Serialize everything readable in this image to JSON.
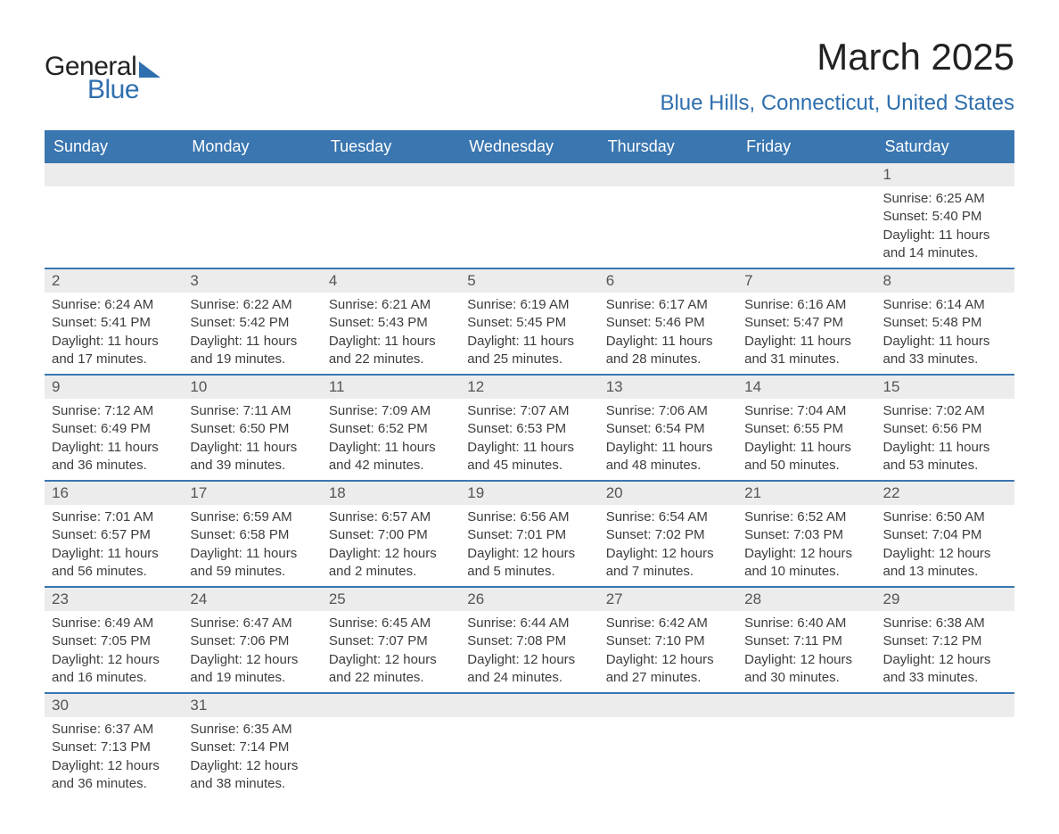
{
  "brand": {
    "word1": "General",
    "word2": "Blue",
    "accent_color": "#2f6fae",
    "text_color": "#222222"
  },
  "title": "March 2025",
  "location": "Blue Hills, Connecticut, United States",
  "colors": {
    "header_bg": "#3a76b0",
    "header_text": "#ffffff",
    "strip_bg": "#ececec",
    "strip_text": "#555555",
    "body_text": "#3d3d3d",
    "rule": "#3a76b0",
    "page_bg": "#ffffff"
  },
  "day_names": [
    "Sunday",
    "Monday",
    "Tuesday",
    "Wednesday",
    "Thursday",
    "Friday",
    "Saturday"
  ],
  "weeks": [
    [
      {
        "day": "",
        "sunrise": "",
        "sunset": "",
        "daylight": ""
      },
      {
        "day": "",
        "sunrise": "",
        "sunset": "",
        "daylight": ""
      },
      {
        "day": "",
        "sunrise": "",
        "sunset": "",
        "daylight": ""
      },
      {
        "day": "",
        "sunrise": "",
        "sunset": "",
        "daylight": ""
      },
      {
        "day": "",
        "sunrise": "",
        "sunset": "",
        "daylight": ""
      },
      {
        "day": "",
        "sunrise": "",
        "sunset": "",
        "daylight": ""
      },
      {
        "day": "1",
        "sunrise": "Sunrise: 6:25 AM",
        "sunset": "Sunset: 5:40 PM",
        "daylight": "Daylight: 11 hours and 14 minutes."
      }
    ],
    [
      {
        "day": "2",
        "sunrise": "Sunrise: 6:24 AM",
        "sunset": "Sunset: 5:41 PM",
        "daylight": "Daylight: 11 hours and 17 minutes."
      },
      {
        "day": "3",
        "sunrise": "Sunrise: 6:22 AM",
        "sunset": "Sunset: 5:42 PM",
        "daylight": "Daylight: 11 hours and 19 minutes."
      },
      {
        "day": "4",
        "sunrise": "Sunrise: 6:21 AM",
        "sunset": "Sunset: 5:43 PM",
        "daylight": "Daylight: 11 hours and 22 minutes."
      },
      {
        "day": "5",
        "sunrise": "Sunrise: 6:19 AM",
        "sunset": "Sunset: 5:45 PM",
        "daylight": "Daylight: 11 hours and 25 minutes."
      },
      {
        "day": "6",
        "sunrise": "Sunrise: 6:17 AM",
        "sunset": "Sunset: 5:46 PM",
        "daylight": "Daylight: 11 hours and 28 minutes."
      },
      {
        "day": "7",
        "sunrise": "Sunrise: 6:16 AM",
        "sunset": "Sunset: 5:47 PM",
        "daylight": "Daylight: 11 hours and 31 minutes."
      },
      {
        "day": "8",
        "sunrise": "Sunrise: 6:14 AM",
        "sunset": "Sunset: 5:48 PM",
        "daylight": "Daylight: 11 hours and 33 minutes."
      }
    ],
    [
      {
        "day": "9",
        "sunrise": "Sunrise: 7:12 AM",
        "sunset": "Sunset: 6:49 PM",
        "daylight": "Daylight: 11 hours and 36 minutes."
      },
      {
        "day": "10",
        "sunrise": "Sunrise: 7:11 AM",
        "sunset": "Sunset: 6:50 PM",
        "daylight": "Daylight: 11 hours and 39 minutes."
      },
      {
        "day": "11",
        "sunrise": "Sunrise: 7:09 AM",
        "sunset": "Sunset: 6:52 PM",
        "daylight": "Daylight: 11 hours and 42 minutes."
      },
      {
        "day": "12",
        "sunrise": "Sunrise: 7:07 AM",
        "sunset": "Sunset: 6:53 PM",
        "daylight": "Daylight: 11 hours and 45 minutes."
      },
      {
        "day": "13",
        "sunrise": "Sunrise: 7:06 AM",
        "sunset": "Sunset: 6:54 PM",
        "daylight": "Daylight: 11 hours and 48 minutes."
      },
      {
        "day": "14",
        "sunrise": "Sunrise: 7:04 AM",
        "sunset": "Sunset: 6:55 PM",
        "daylight": "Daylight: 11 hours and 50 minutes."
      },
      {
        "day": "15",
        "sunrise": "Sunrise: 7:02 AM",
        "sunset": "Sunset: 6:56 PM",
        "daylight": "Daylight: 11 hours and 53 minutes."
      }
    ],
    [
      {
        "day": "16",
        "sunrise": "Sunrise: 7:01 AM",
        "sunset": "Sunset: 6:57 PM",
        "daylight": "Daylight: 11 hours and 56 minutes."
      },
      {
        "day": "17",
        "sunrise": "Sunrise: 6:59 AM",
        "sunset": "Sunset: 6:58 PM",
        "daylight": "Daylight: 11 hours and 59 minutes."
      },
      {
        "day": "18",
        "sunrise": "Sunrise: 6:57 AM",
        "sunset": "Sunset: 7:00 PM",
        "daylight": "Daylight: 12 hours and 2 minutes."
      },
      {
        "day": "19",
        "sunrise": "Sunrise: 6:56 AM",
        "sunset": "Sunset: 7:01 PM",
        "daylight": "Daylight: 12 hours and 5 minutes."
      },
      {
        "day": "20",
        "sunrise": "Sunrise: 6:54 AM",
        "sunset": "Sunset: 7:02 PM",
        "daylight": "Daylight: 12 hours and 7 minutes."
      },
      {
        "day": "21",
        "sunrise": "Sunrise: 6:52 AM",
        "sunset": "Sunset: 7:03 PM",
        "daylight": "Daylight: 12 hours and 10 minutes."
      },
      {
        "day": "22",
        "sunrise": "Sunrise: 6:50 AM",
        "sunset": "Sunset: 7:04 PM",
        "daylight": "Daylight: 12 hours and 13 minutes."
      }
    ],
    [
      {
        "day": "23",
        "sunrise": "Sunrise: 6:49 AM",
        "sunset": "Sunset: 7:05 PM",
        "daylight": "Daylight: 12 hours and 16 minutes."
      },
      {
        "day": "24",
        "sunrise": "Sunrise: 6:47 AM",
        "sunset": "Sunset: 7:06 PM",
        "daylight": "Daylight: 12 hours and 19 minutes."
      },
      {
        "day": "25",
        "sunrise": "Sunrise: 6:45 AM",
        "sunset": "Sunset: 7:07 PM",
        "daylight": "Daylight: 12 hours and 22 minutes."
      },
      {
        "day": "26",
        "sunrise": "Sunrise: 6:44 AM",
        "sunset": "Sunset: 7:08 PM",
        "daylight": "Daylight: 12 hours and 24 minutes."
      },
      {
        "day": "27",
        "sunrise": "Sunrise: 6:42 AM",
        "sunset": "Sunset: 7:10 PM",
        "daylight": "Daylight: 12 hours and 27 minutes."
      },
      {
        "day": "28",
        "sunrise": "Sunrise: 6:40 AM",
        "sunset": "Sunset: 7:11 PM",
        "daylight": "Daylight: 12 hours and 30 minutes."
      },
      {
        "day": "29",
        "sunrise": "Sunrise: 6:38 AM",
        "sunset": "Sunset: 7:12 PM",
        "daylight": "Daylight: 12 hours and 33 minutes."
      }
    ],
    [
      {
        "day": "30",
        "sunrise": "Sunrise: 6:37 AM",
        "sunset": "Sunset: 7:13 PM",
        "daylight": "Daylight: 12 hours and 36 minutes."
      },
      {
        "day": "31",
        "sunrise": "Sunrise: 6:35 AM",
        "sunset": "Sunset: 7:14 PM",
        "daylight": "Daylight: 12 hours and 38 minutes."
      },
      {
        "day": "",
        "sunrise": "",
        "sunset": "",
        "daylight": ""
      },
      {
        "day": "",
        "sunrise": "",
        "sunset": "",
        "daylight": ""
      },
      {
        "day": "",
        "sunrise": "",
        "sunset": "",
        "daylight": ""
      },
      {
        "day": "",
        "sunrise": "",
        "sunset": "",
        "daylight": ""
      },
      {
        "day": "",
        "sunrise": "",
        "sunset": "",
        "daylight": ""
      }
    ]
  ]
}
